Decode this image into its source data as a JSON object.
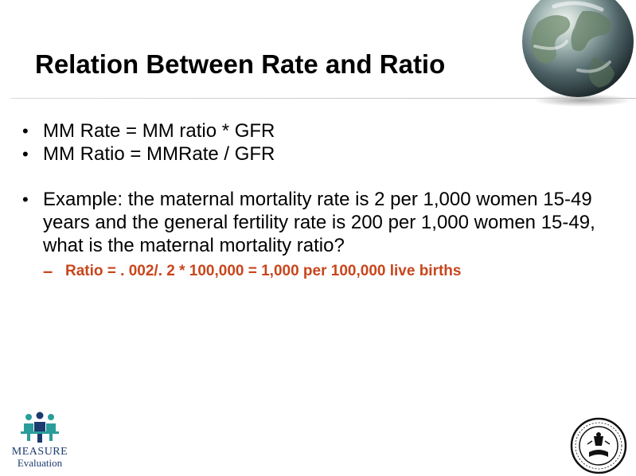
{
  "slide": {
    "title": "Relation Between Rate and Ratio",
    "bullets": [
      "MM Rate = MM ratio * GFR",
      "MM Ratio = MMRate / GFR",
      "Example: the maternal mortality rate is 2 per 1,000 women 15-49 years and the general fertility rate is 200 per 1,000 women 15-49, what is the maternal mortality ratio?"
    ],
    "sub_bullet": "Ratio = . 002/. 2 * 100,000 = 1,000 per 100,000 live births"
  },
  "logos": {
    "measure_name": "MEASURE",
    "measure_sub": "Evaluation"
  },
  "colors": {
    "accent": "#c8461c",
    "logo_blue": "#1b3b6f",
    "logo_teal": "#2a9d9b"
  },
  "icons": {
    "globe": "globe-icon",
    "measure_logo": "measure-people-icon",
    "seal": "university-seal-icon"
  }
}
